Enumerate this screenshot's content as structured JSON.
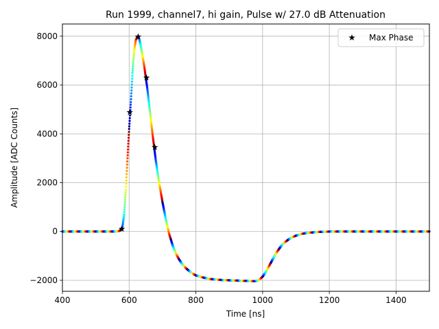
{
  "chart_data": {
    "type": "scatter",
    "title": "Run 1999, channel7, hi gain, Pulse w/ 27.0 dB Attenuation",
    "xlabel": "Time [ns]",
    "ylabel": "Amplitude [ADC Counts]",
    "xlim": [
      400,
      1500
    ],
    "ylim": [
      -2450,
      8500
    ],
    "xticks": [
      400,
      600,
      800,
      1000,
      1200,
      1400
    ],
    "yticks": [
      -2000,
      0,
      2000,
      4000,
      6000,
      8000
    ],
    "xtick_labels": [
      "400",
      "600",
      "800",
      "1000",
      "1200",
      "1400"
    ],
    "ytick_labels": [
      "−2000",
      "0",
      "2000",
      "4000",
      "6000",
      "8000"
    ],
    "grid": true,
    "legend_position": "top-right",
    "pulse_curve": {
      "x": [
        400,
        560,
        570,
        575,
        580,
        585,
        590,
        595,
        600,
        605,
        610,
        615,
        620,
        625,
        630,
        635,
        640,
        645,
        650,
        655,
        660,
        665,
        670,
        675,
        680,
        690,
        700,
        710,
        720,
        730,
        740,
        750,
        760,
        770,
        780,
        790,
        800,
        820,
        840,
        860,
        880,
        900,
        920,
        940,
        960,
        980,
        990,
        1000,
        1010,
        1020,
        1030,
        1040,
        1050,
        1060,
        1080,
        1100,
        1120,
        1140,
        1160,
        1180,
        1200,
        1250,
        1300,
        1400,
        1500
      ],
      "y": [
        0,
        0,
        20,
        60,
        200,
        700,
        1700,
        3000,
        4200,
        5300,
        6500,
        7400,
        7850,
        7980,
        7900,
        7600,
        7200,
        6800,
        6300,
        5800,
        5200,
        4600,
        4000,
        3450,
        2900,
        2000,
        1200,
        500,
        -100,
        -550,
        -900,
        -1150,
        -1350,
        -1500,
        -1620,
        -1720,
        -1800,
        -1880,
        -1940,
        -1970,
        -1990,
        -2000,
        -2010,
        -2020,
        -2030,
        -2030,
        -1980,
        -1850,
        -1650,
        -1400,
        -1150,
        -900,
        -700,
        -520,
        -300,
        -170,
        -90,
        -50,
        -25,
        -12,
        -5,
        0,
        0,
        0,
        0
      ]
    },
    "series": [
      {
        "name": "Max Phase",
        "marker": "star",
        "x": [
          578,
          602,
          627,
          652,
          677
        ],
        "y": [
          100,
          4880,
          7980,
          6300,
          3450
        ]
      }
    ]
  }
}
